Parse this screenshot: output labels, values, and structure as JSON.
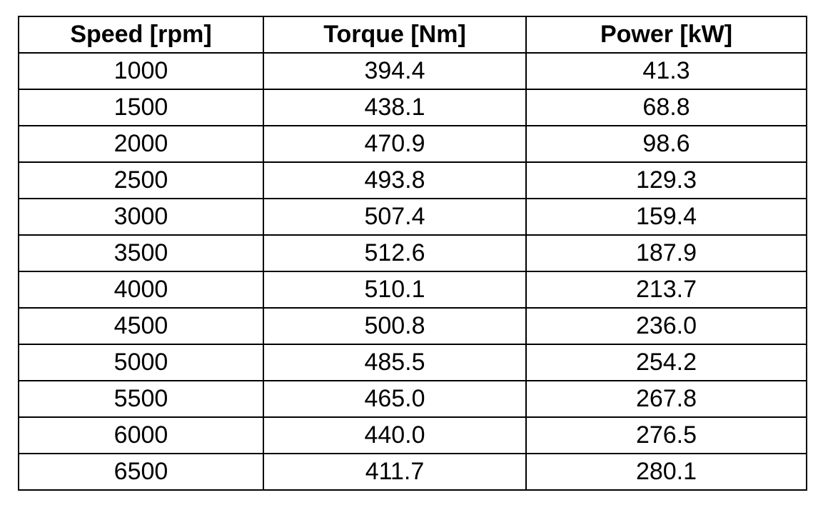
{
  "chart_data": {
    "type": "table",
    "columns": [
      "Speed [rpm]",
      "Torque [Nm]",
      "Power [kW]"
    ],
    "rows": [
      [
        "1000",
        "394.4",
        "41.3"
      ],
      [
        "1500",
        "438.1",
        "68.8"
      ],
      [
        "2000",
        "470.9",
        "98.6"
      ],
      [
        "2500",
        "493.8",
        "129.3"
      ],
      [
        "3000",
        "507.4",
        "159.4"
      ],
      [
        "3500",
        "512.6",
        "187.9"
      ],
      [
        "4000",
        "510.1",
        "213.7"
      ],
      [
        "4500",
        "500.8",
        "236.0"
      ],
      [
        "5000",
        "485.5",
        "254.2"
      ],
      [
        "5500",
        "465.0",
        "267.8"
      ],
      [
        "6000",
        "440.0",
        "276.5"
      ],
      [
        "6500",
        "411.7",
        "280.1"
      ]
    ]
  }
}
